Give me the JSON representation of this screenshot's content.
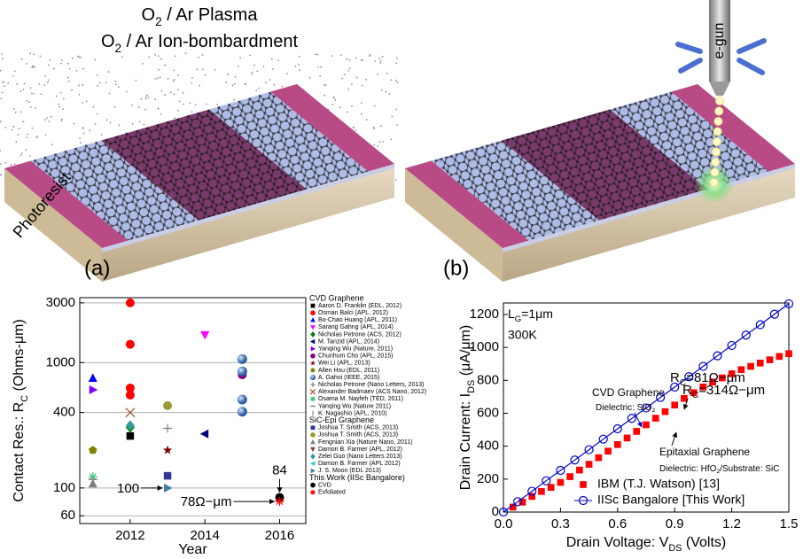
{
  "illustrations": {
    "a": {
      "title_lines": [
        [
          "O",
          "2",
          " / Ar Plasma"
        ],
        [
          "O",
          "2",
          " / Ar Ion-bombardment"
        ]
      ],
      "photoresist": "Photoresist",
      "label": "(a)"
    },
    "b": {
      "egun": "e-gun",
      "label": "(b)"
    }
  },
  "chart_data": [
    {
      "type": "scatter",
      "x_label": "Year",
      "y_label": [
        "Contact Res.: R",
        "C",
        " (Ohms-μm)"
      ],
      "log_y": true,
      "grid": true,
      "xlim": [
        2010.65,
        2016.7
      ],
      "xticks": [
        2012,
        2014,
        2016
      ],
      "ylim": [
        52,
        3300
      ],
      "yticks": [
        60,
        100,
        400,
        1000,
        3000
      ],
      "groups": [
        {
          "name": "CVD Graphene",
          "series": [
            {
              "name": "Aaron D. Franklin (EDL, 2012)",
              "color": "#000000",
              "marker": "square",
              "x": [
                2012
              ],
              "values": [
                260
              ]
            },
            {
              "name": "Osman Balci (APL, 2012)",
              "color": "#ff0000",
              "marker": "circle",
              "x": [
                2012,
                2012,
                2012,
                2012
              ],
              "values": [
                3000,
                1400,
                627,
                551
              ]
            },
            {
              "name": "Bo-Chao Huang (APL, 2011)",
              "color": "#0000ff",
              "marker": "triangle-up",
              "x": [
                2011
              ],
              "values": [
                750
              ]
            },
            {
              "name": "Sarang Gahng (APL, 2014)",
              "color": "#ff00ff",
              "marker": "triangle-down",
              "x": [
                2014
              ],
              "values": [
                1670
              ]
            },
            {
              "name": "Nicholas Petrone (ACS, 2012)",
              "color": "#008000",
              "marker": "diamond",
              "x": [
                2012
              ],
              "values": [
                304
              ]
            },
            {
              "name": "M. Tanzid (APL, 2014)",
              "color": "#000080",
              "marker": "triangle-left",
              "x": [
                2014
              ],
              "values": [
                270
              ]
            },
            {
              "name": "Yanqing Wu (Nature, 2011)",
              "color": "#8000ff",
              "marker": "triangle-right",
              "x": [
                2011
              ],
              "values": [
                607
              ]
            },
            {
              "name": "Chunhum Cho (APL, 2015)",
              "color": "#800080",
              "marker": "circle",
              "x": [
                2015
              ],
              "values": [
                800
              ]
            },
            {
              "name": "Wei Li (APL, 2013)",
              "color": "#800000",
              "marker": "star",
              "x": [
                2013
              ],
              "values": [
                200
              ]
            },
            {
              "name": "Allen Hsu (EDL, 2011)",
              "color": "#808000",
              "marker": "pentagon",
              "x": [
                2011
              ],
              "values": [
                200
              ]
            },
            {
              "name": "A. Gahoi (IEEE, 2015)",
              "color": "#4f81bd",
              "marker": "sphere",
              "x": [
                2015,
                2015,
                2015,
                2015
              ],
              "values": [
                1067,
                851,
                508,
                406
              ]
            },
            {
              "name": "Nicholas Petrone (Nano Letters, 2013)",
              "color": "#808080",
              "marker": "plus",
              "x": [
                2013
              ],
              "values": [
                299
              ]
            },
            {
              "name": "Alexander Badmaev (ACS Nano, 2012)",
              "color": "#a0522d",
              "marker": "cross",
              "x": [
                2012
              ],
              "values": [
                400
              ]
            },
            {
              "name": "Osama M. Nayfeh (TED, 2011)",
              "color": "#40c080",
              "marker": "asterisk",
              "x": [
                2011
              ],
              "values": [
                123
              ]
            },
            {
              "name": "Yanqing Wu (Nature 2011)",
              "color": "#808080",
              "marker": "dash",
              "x": [
                2011
              ],
              "values": [
                117
              ]
            },
            {
              "name": "K. Nagashio (APL, 2010)",
              "color": "#a0a0a0",
              "marker": "vbar",
              "x": [],
              "values": []
            }
          ]
        },
        {
          "name": "SiC-Epi Graphene",
          "series": [
            {
              "name": "Joshua T. Smith (ACS, 2013)",
              "color": "#333399",
              "marker": "square",
              "x": [
                2013
              ],
              "values": [
                125
              ]
            },
            {
              "name": "Joshua T. Smith (ACS, 2013)",
              "color": "#999933",
              "marker": "circle",
              "x": [
                2013
              ],
              "values": [
                454
              ]
            },
            {
              "name": "Fengnian Xia (Nature Nano, 2011)",
              "color": "#808080",
              "marker": "triangle-up",
              "x": [
                2011
              ],
              "values": [
                108
              ]
            },
            {
              "name": "Damon B. Farmer (APL, 2012)",
              "color": "#804040",
              "marker": "triangle-down",
              "x": [],
              "values": []
            },
            {
              "name": "Zelei Guo (Nano Letters 2013)",
              "color": "#339999",
              "marker": "diamond",
              "x": [
                2012
              ],
              "values": [
                315
              ]
            },
            {
              "name": "Damon B. Farmer (APL 2012)",
              "color": "#33cccc",
              "marker": "triangle-left",
              "x": [],
              "values": []
            },
            {
              "name": "J. S. Moon (EDL 2013)",
              "color": "#4080a0",
              "marker": "triangle-right",
              "x": [
                2013
              ],
              "values": [
                100
              ],
              "label_position": "left"
            }
          ]
        },
        {
          "name": "This Work (IISc Bangalore)",
          "series": [
            {
              "name": "CVD",
              "color": "#000000",
              "marker": "circle",
              "x": [
                2016
              ],
              "values": [
                84
              ],
              "label_position": "above"
            },
            {
              "name": "Exfoliated",
              "color": "#ff0000",
              "marker": "asterisk",
              "x": [
                2016
              ],
              "values": [
                78
              ],
              "value_labels": [
                "78Ω−μm"
              ],
              "label_position": "left"
            }
          ]
        }
      ]
    },
    {
      "type": "line",
      "x_label": [
        "Drain Voltage: V",
        "DS",
        " (Volts)"
      ],
      "y_label": [
        "Drain Current: I",
        "DS",
        " (μA/μm)"
      ],
      "xlim": [
        0,
        1.5
      ],
      "xticks": [
        {
          "value": 0,
          "label": "0.0"
        },
        0.3,
        0.6,
        0.9,
        1.2,
        1.5
      ],
      "ylim": [
        0,
        1270
      ],
      "yticks": [
        0,
        200,
        400,
        600,
        800,
        1000,
        1200
      ],
      "legend": "lower right",
      "annotations": [
        {
          "text": [
            "L",
            "G",
            "=1μm"
          ],
          "color": "#000000"
        },
        {
          "text": "300K",
          "color": "#000000"
        },
        {
          "text": [
            "R",
            "C",
            "=81Ω−μm"
          ],
          "color": "#0000cc"
        },
        {
          "text": "CVD Graphene",
          "color": "#0000cc"
        },
        {
          "text": [
            "Dielectric: SiO",
            "2"
          ],
          "color": "#0000cc"
        },
        {
          "text": [
            "R",
            "C",
            "=314Ω−μm"
          ],
          "color": "#000000"
        },
        {
          "text": "Epitaxial Graphene",
          "color": "#000000"
        },
        {
          "text": [
            "Dielectric: HfO",
            "2",
            "/Substrate: SiC"
          ],
          "color": "#000000"
        }
      ],
      "series": [
        {
          "name": "IBM (T.J. Watson) [13]",
          "color": "#ff0000",
          "marker": "square",
          "line": false,
          "x": [
            0.05,
            0.1,
            0.15,
            0.2,
            0.25,
            0.3,
            0.35,
            0.4,
            0.45,
            0.5,
            0.55,
            0.6,
            0.65,
            0.7,
            0.75,
            0.8,
            0.85,
            0.9,
            0.95,
            1.0,
            1.05,
            1.1,
            1.15,
            1.2,
            1.25,
            1.3,
            1.35,
            1.4,
            1.45,
            1.5
          ],
          "values": [
            30,
            60,
            95,
            125,
            150,
            180,
            215,
            255,
            290,
            330,
            370,
            410,
            450,
            490,
            530,
            570,
            610,
            650,
            690,
            725,
            760,
            790,
            815,
            840,
            865,
            885,
            905,
            925,
            945,
            962
          ]
        },
        {
          "name": "IISc Bangalore [This Work]",
          "color": "#0000cc",
          "marker": "open-circle",
          "line": true,
          "x": [
            0,
            0.075,
            0.15,
            0.225,
            0.3,
            0.375,
            0.45,
            0.525,
            0.6,
            0.675,
            0.75,
            0.825,
            0.9,
            0.975,
            1.05,
            1.125,
            1.2,
            1.275,
            1.35,
            1.425,
            1.5
          ],
          "values": [
            0,
            63,
            126,
            190,
            253,
            316,
            379,
            443,
            506,
            569,
            632,
            696,
            759,
            822,
            885,
            949,
            1012,
            1075,
            1138,
            1202,
            1265
          ]
        }
      ]
    }
  ]
}
